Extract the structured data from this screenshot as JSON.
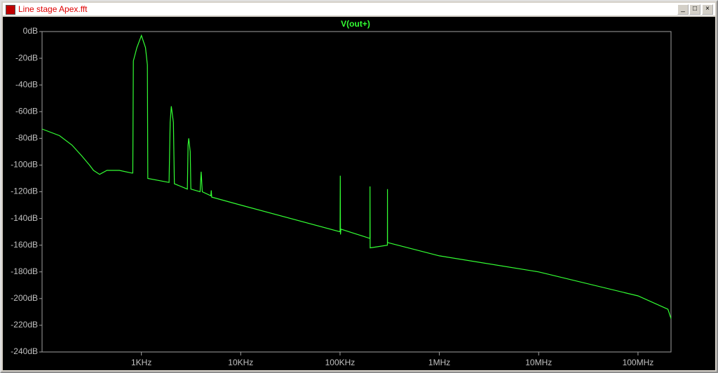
{
  "window": {
    "title": "Line stage Apex.fft"
  },
  "chart_data": {
    "type": "line",
    "title": "V(out+)",
    "xscale": "log",
    "grid": false,
    "series": [
      {
        "name": "V(out+)",
        "color": "#33ff33",
        "x": [
          100,
          150,
          200,
          250,
          300,
          330,
          380,
          450,
          600,
          800,
          820,
          830,
          900,
          1000,
          1100,
          1150,
          1160,
          1900,
          1950,
          2000,
          2100,
          2150,
          2900,
          2950,
          3000,
          3100,
          3150,
          3900,
          4000,
          4100,
          5000,
          5050,
          5100,
          10000,
          100000,
          100500,
          101000,
          102000,
          200000,
          200500,
          201000,
          300000,
          300500,
          301000,
          1000000,
          10000000,
          100000000,
          200000000,
          215000000
        ],
        "values": [
          -73,
          -78,
          -85,
          -93,
          -100,
          -104,
          -107,
          -104,
          -104,
          -106,
          -106,
          -22,
          -12,
          -3,
          -12,
          -25,
          -110,
          -113,
          -68,
          -56,
          -68,
          -114,
          -118,
          -85,
          -80,
          -90,
          -118,
          -120,
          -105,
          -120,
          -123,
          -119,
          -124,
          -130,
          -150,
          -108,
          -152,
          -148,
          -155,
          -116,
          -162,
          -160,
          -118,
          -158,
          -168,
          -180,
          -198,
          -208,
          -215
        ]
      }
    ],
    "xlim": [
      100,
      215000000
    ],
    "xticks": [
      {
        "value": 1000,
        "label": "1KHz"
      },
      {
        "value": 10000,
        "label": "10KHz"
      },
      {
        "value": 100000,
        "label": "100KHz"
      },
      {
        "value": 1000000,
        "label": "1MHz"
      },
      {
        "value": 10000000,
        "label": "10MHz"
      },
      {
        "value": 100000000,
        "label": "100MHz"
      }
    ],
    "ylim": [
      -240,
      0
    ],
    "yticks": [
      {
        "value": 0,
        "label": "0dB"
      },
      {
        "value": -20,
        "label": "-20dB"
      },
      {
        "value": -40,
        "label": "-40dB"
      },
      {
        "value": -60,
        "label": "-60dB"
      },
      {
        "value": -80,
        "label": "-80dB"
      },
      {
        "value": -100,
        "label": "-100dB"
      },
      {
        "value": -120,
        "label": "-120dB"
      },
      {
        "value": -140,
        "label": "-140dB"
      },
      {
        "value": -160,
        "label": "-160dB"
      },
      {
        "value": -180,
        "label": "-180dB"
      },
      {
        "value": -200,
        "label": "-200dB"
      },
      {
        "value": -220,
        "label": "-220dB"
      },
      {
        "value": -240,
        "label": "-240dB"
      }
    ]
  }
}
